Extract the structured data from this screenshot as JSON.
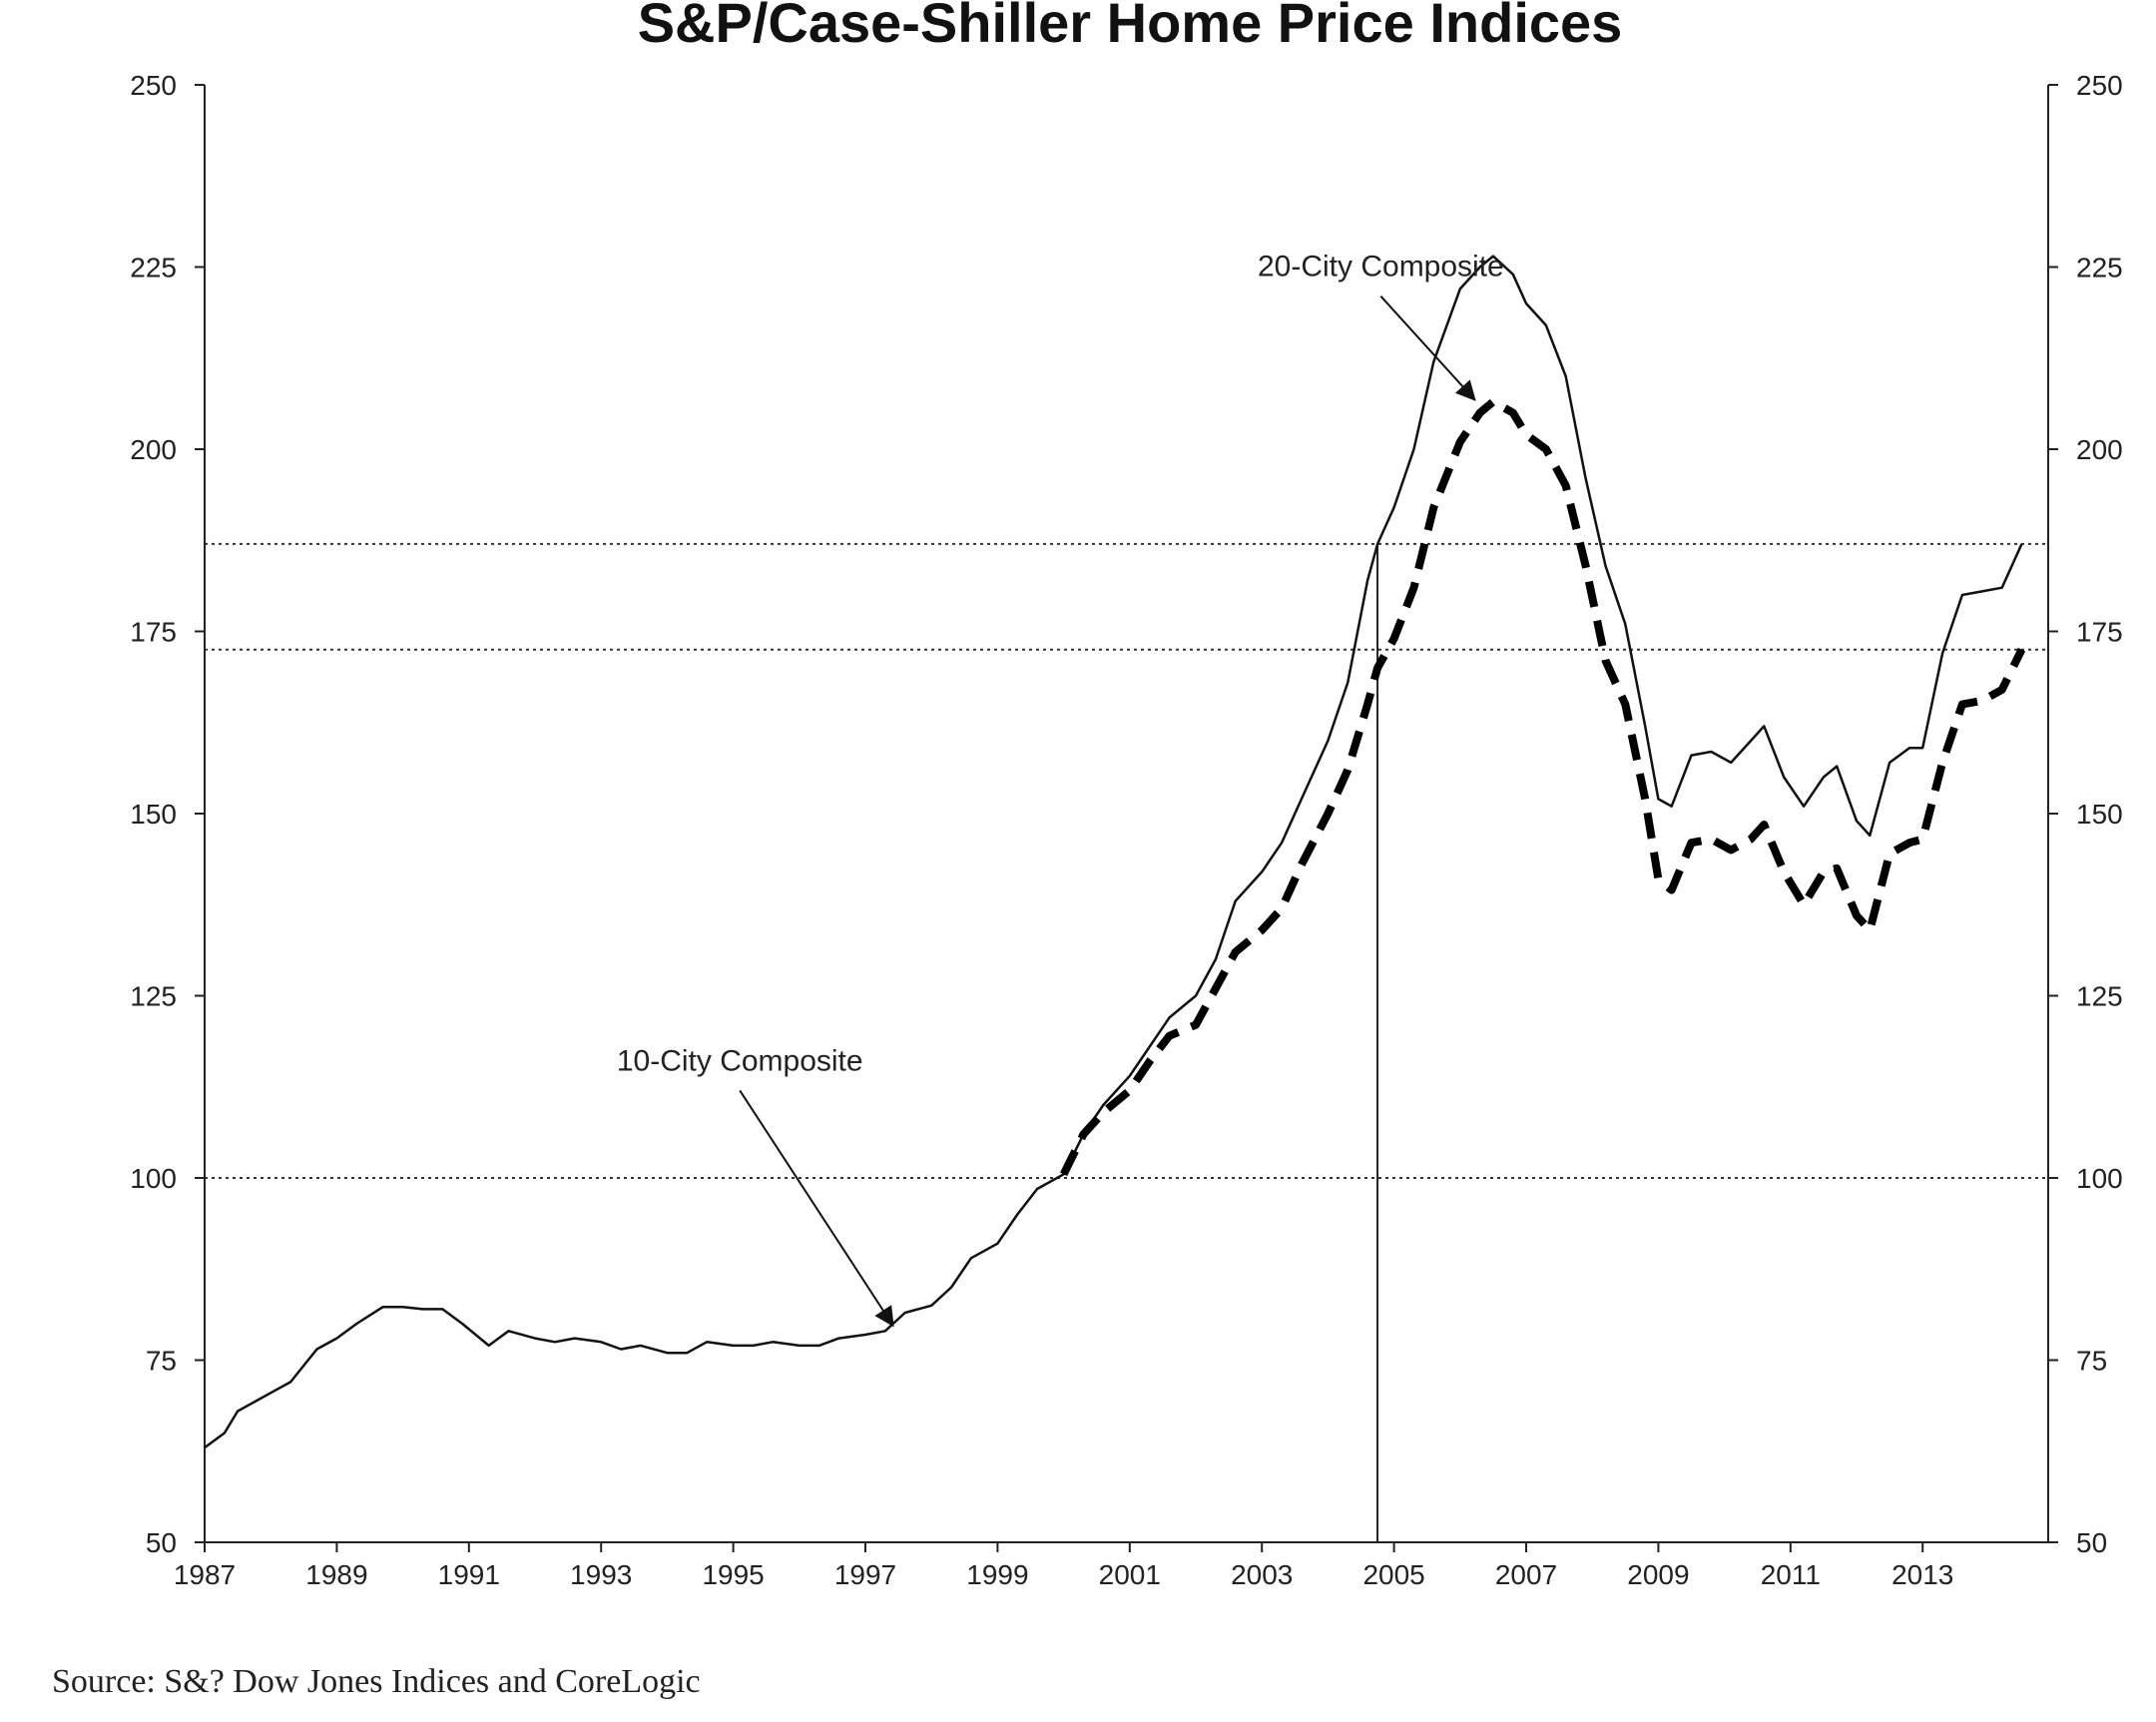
{
  "chart_data": {
    "type": "line",
    "title": "S&P/Case-Shiller Home Price Indices",
    "source": "Source: S&? Dow Jones Indices and CoreLogic",
    "xlabel": "",
    "ylabel": "",
    "xlim": [
      1987,
      2014.9
    ],
    "ylim": [
      50,
      250
    ],
    "y_ticks": [
      50,
      75,
      100,
      125,
      150,
      175,
      200,
      225,
      250
    ],
    "x_ticks": [
      1987,
      1989,
      1991,
      1993,
      1995,
      1997,
      1999,
      2001,
      2003,
      2005,
      2007,
      2009,
      2011,
      2013
    ],
    "x_tick_labels": [
      "1987",
      "1989",
      "1991",
      "1993",
      "1995",
      "1997",
      "1999",
      "2001",
      "2003",
      "2005",
      "2007",
      "2009",
      "2011",
      "2013"
    ],
    "grid": false,
    "reference_lines": {
      "horizontal": [
        {
          "y": 187,
          "style": "dotted"
        },
        {
          "y": 172.5,
          "style": "dotted"
        },
        {
          "y": 100,
          "style": "dotted"
        }
      ],
      "vertical": [
        {
          "x": 2004.75,
          "y_from": 50,
          "y_to": 187
        }
      ]
    },
    "annotations": [
      {
        "text": "20-City Composite",
        "arrow_from": [
          2004.8,
          221
        ],
        "arrow_to": [
          2006.2,
          207
        ]
      },
      {
        "text": "10-City Composite",
        "arrow_from": [
          1995.1,
          112
        ],
        "arrow_to": [
          1997.4,
          80
        ]
      }
    ],
    "series": [
      {
        "name": "10-City Composite",
        "style": "solid",
        "color": "#111111",
        "points": [
          [
            1987.0,
            63
          ],
          [
            1987.3,
            65
          ],
          [
            1987.5,
            68
          ],
          [
            1988.0,
            70.5
          ],
          [
            1988.3,
            72
          ],
          [
            1988.7,
            76.5
          ],
          [
            1989.0,
            78
          ],
          [
            1989.3,
            80
          ],
          [
            1989.7,
            82.3
          ],
          [
            1990.0,
            82.3
          ],
          [
            1990.3,
            82
          ],
          [
            1990.6,
            82
          ],
          [
            1990.9,
            80
          ],
          [
            1991.3,
            77
          ],
          [
            1991.6,
            79
          ],
          [
            1992.0,
            78
          ],
          [
            1992.3,
            77.5
          ],
          [
            1992.6,
            78
          ],
          [
            1993.0,
            77.5
          ],
          [
            1993.3,
            76.5
          ],
          [
            1993.6,
            77
          ],
          [
            1994.0,
            76
          ],
          [
            1994.3,
            76
          ],
          [
            1994.6,
            77.5
          ],
          [
            1995.0,
            77
          ],
          [
            1995.3,
            77
          ],
          [
            1995.6,
            77.5
          ],
          [
            1996.0,
            77
          ],
          [
            1996.3,
            77
          ],
          [
            1996.6,
            78
          ],
          [
            1997.0,
            78.5
          ],
          [
            1997.3,
            79
          ],
          [
            1997.6,
            81.5
          ],
          [
            1998.0,
            82.5
          ],
          [
            1998.3,
            85
          ],
          [
            1998.6,
            89
          ],
          [
            1999.0,
            91
          ],
          [
            1999.3,
            95
          ],
          [
            1999.6,
            98.5
          ],
          [
            2000.0,
            100.5
          ],
          [
            2000.3,
            106
          ],
          [
            2000.6,
            110
          ],
          [
            2001.0,
            114
          ],
          [
            2001.3,
            118
          ],
          [
            2001.6,
            122
          ],
          [
            2002.0,
            125
          ],
          [
            2002.3,
            130
          ],
          [
            2002.6,
            138
          ],
          [
            2003.0,
            142
          ],
          [
            2003.3,
            146
          ],
          [
            2003.6,
            152
          ],
          [
            2004.0,
            160
          ],
          [
            2004.3,
            168
          ],
          [
            2004.6,
            182
          ],
          [
            2004.75,
            187
          ],
          [
            2005.0,
            192
          ],
          [
            2005.3,
            200
          ],
          [
            2005.6,
            212
          ],
          [
            2006.0,
            222
          ],
          [
            2006.3,
            225
          ],
          [
            2006.5,
            226.5
          ],
          [
            2006.8,
            224
          ],
          [
            2007.0,
            220
          ],
          [
            2007.3,
            217
          ],
          [
            2007.6,
            210
          ],
          [
            2007.9,
            196
          ],
          [
            2008.2,
            184
          ],
          [
            2008.5,
            176
          ],
          [
            2008.8,
            162
          ],
          [
            2009.0,
            152
          ],
          [
            2009.2,
            151
          ],
          [
            2009.5,
            158
          ],
          [
            2009.8,
            158.5
          ],
          [
            2010.1,
            157
          ],
          [
            2010.4,
            160
          ],
          [
            2010.6,
            162
          ],
          [
            2010.9,
            155
          ],
          [
            2011.2,
            151
          ],
          [
            2011.5,
            155
          ],
          [
            2011.7,
            156.5
          ],
          [
            2012.0,
            149
          ],
          [
            2012.2,
            147
          ],
          [
            2012.5,
            157
          ],
          [
            2012.8,
            159
          ],
          [
            2013.0,
            159
          ],
          [
            2013.3,
            172
          ],
          [
            2013.6,
            180
          ],
          [
            2013.9,
            180.5
          ],
          [
            2014.2,
            181
          ],
          [
            2014.5,
            187
          ]
        ]
      },
      {
        "name": "20-City Composite",
        "style": "dashed",
        "color": "#000000",
        "points": [
          [
            2000.0,
            100.5
          ],
          [
            2000.3,
            106
          ],
          [
            2000.6,
            109
          ],
          [
            2001.0,
            112
          ],
          [
            2001.3,
            116
          ],
          [
            2001.6,
            119.5
          ],
          [
            2002.0,
            121
          ],
          [
            2002.3,
            126
          ],
          [
            2002.6,
            131
          ],
          [
            2003.0,
            134
          ],
          [
            2003.3,
            137
          ],
          [
            2003.6,
            143
          ],
          [
            2004.0,
            150
          ],
          [
            2004.3,
            156
          ],
          [
            2004.6,
            165
          ],
          [
            2004.75,
            170
          ],
          [
            2005.0,
            174
          ],
          [
            2005.3,
            181
          ],
          [
            2005.6,
            192
          ],
          [
            2006.0,
            201
          ],
          [
            2006.3,
            205
          ],
          [
            2006.5,
            206.5
          ],
          [
            2006.8,
            205
          ],
          [
            2007.0,
            202
          ],
          [
            2007.3,
            200
          ],
          [
            2007.6,
            195
          ],
          [
            2007.9,
            184
          ],
          [
            2008.2,
            171
          ],
          [
            2008.5,
            165
          ],
          [
            2008.8,
            152
          ],
          [
            2009.0,
            141
          ],
          [
            2009.2,
            139.5
          ],
          [
            2009.5,
            146
          ],
          [
            2009.8,
            146.5
          ],
          [
            2010.1,
            145
          ],
          [
            2010.4,
            146.5
          ],
          [
            2010.6,
            148.5
          ],
          [
            2010.9,
            142
          ],
          [
            2011.2,
            137.5
          ],
          [
            2011.5,
            142
          ],
          [
            2011.7,
            142.5
          ],
          [
            2012.0,
            136
          ],
          [
            2012.2,
            134
          ],
          [
            2012.5,
            144.5
          ],
          [
            2012.8,
            146
          ],
          [
            2013.0,
            146.5
          ],
          [
            2013.3,
            157
          ],
          [
            2013.6,
            165
          ],
          [
            2013.9,
            165.5
          ],
          [
            2014.2,
            167
          ],
          [
            2014.5,
            172.5
          ]
        ]
      }
    ]
  }
}
